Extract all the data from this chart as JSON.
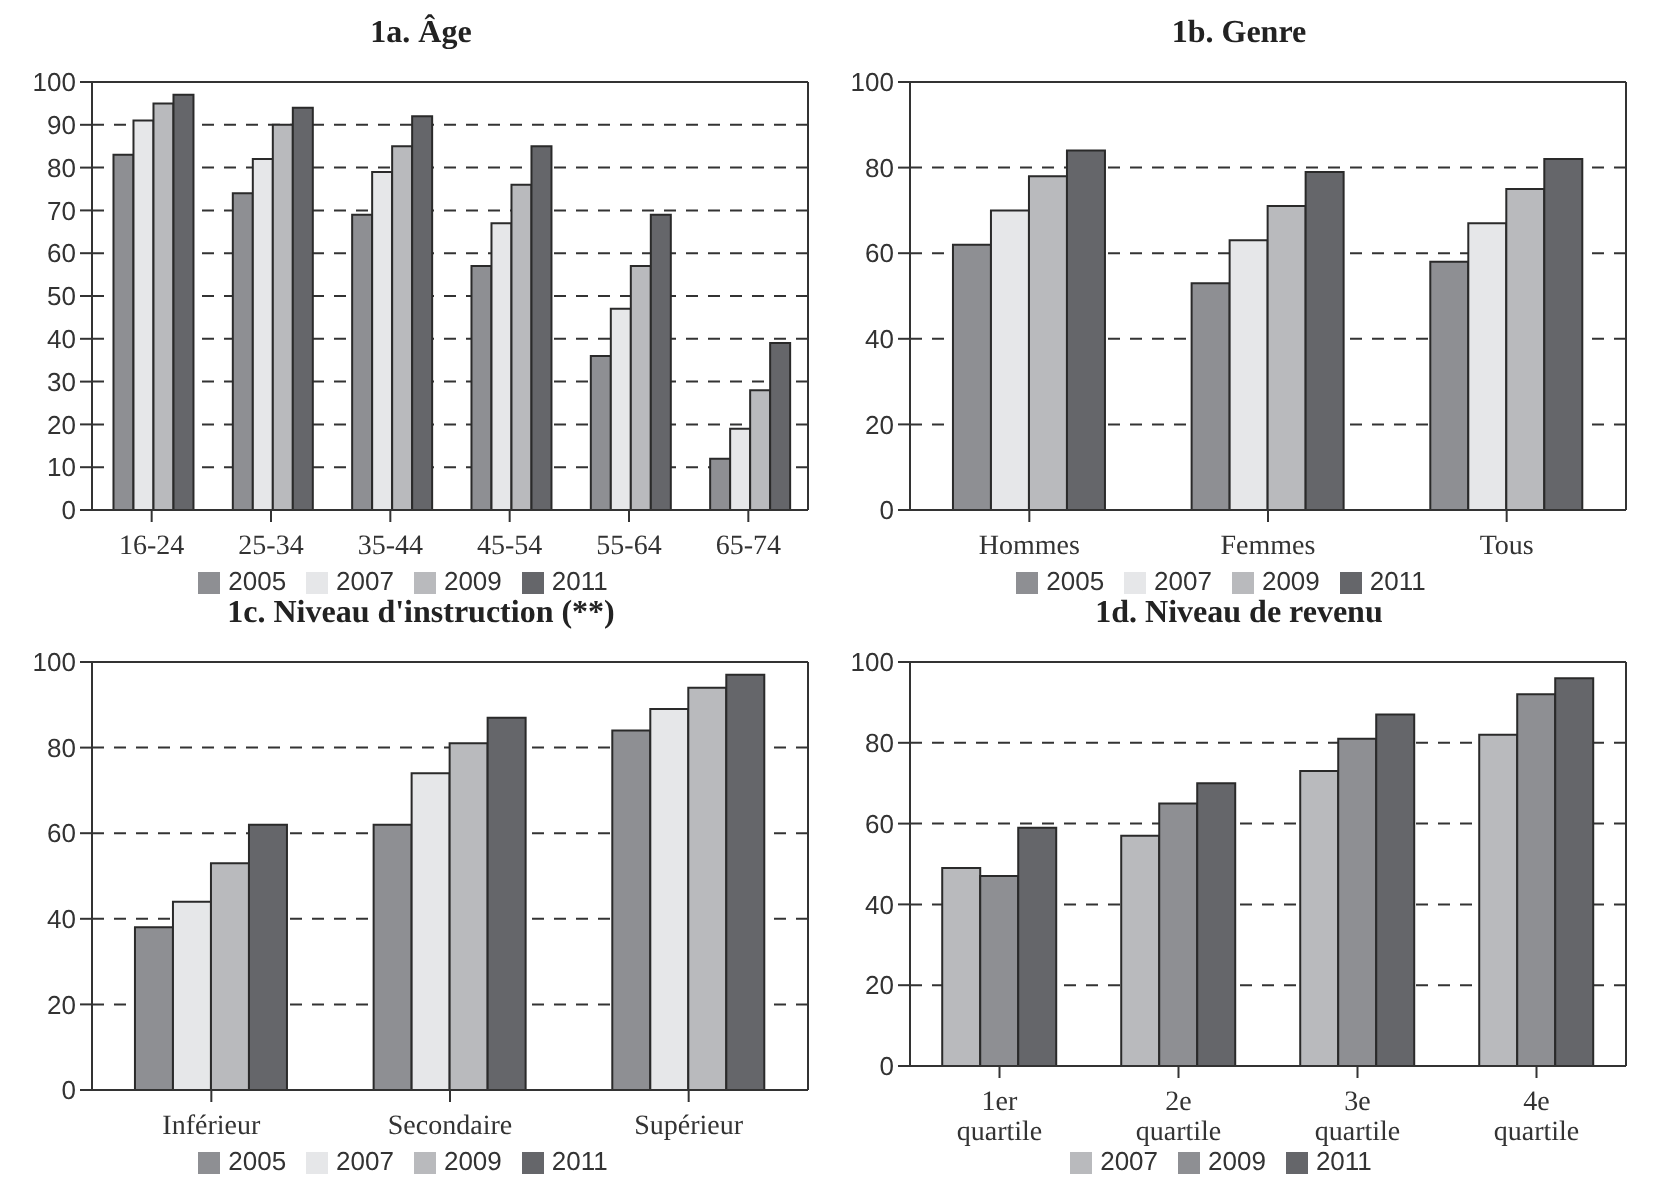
{
  "chart_data": [
    {
      "type": "bar",
      "title": "1a. Âge",
      "categories": [
        "16-24",
        "25-34",
        "35-44",
        "45-54",
        "55-64",
        "65-74"
      ],
      "series": [
        {
          "name": "2005",
          "color": "#8e8f93",
          "values": [
            83,
            74,
            69,
            57,
            36,
            12
          ]
        },
        {
          "name": "2007",
          "color": "#e6e7e9",
          "values": [
            91,
            82,
            79,
            67,
            47,
            19
          ]
        },
        {
          "name": "2009",
          "color": "#b9babd",
          "values": [
            95,
            90,
            85,
            76,
            57,
            28
          ]
        },
        {
          "name": "2011",
          "color": "#65666a",
          "values": [
            97,
            94,
            92,
            85,
            69,
            39
          ]
        }
      ],
      "ylim": [
        0,
        100
      ],
      "yticks": [
        0,
        10,
        20,
        30,
        40,
        50,
        60,
        70,
        80,
        90,
        100
      ],
      "grid": "y",
      "legend": "bottom"
    },
    {
      "type": "bar",
      "title": "1b. Genre",
      "categories": [
        "Hommes",
        "Femmes",
        "Tous"
      ],
      "series": [
        {
          "name": "2005",
          "color": "#8e8f93",
          "values": [
            62,
            53,
            58
          ]
        },
        {
          "name": "2007",
          "color": "#e6e7e9",
          "values": [
            70,
            63,
            67
          ]
        },
        {
          "name": "2009",
          "color": "#b9babd",
          "values": [
            78,
            71,
            75
          ]
        },
        {
          "name": "2011",
          "color": "#65666a",
          "values": [
            84,
            79,
            82
          ]
        }
      ],
      "ylim": [
        0,
        100
      ],
      "yticks": [
        0,
        20,
        40,
        60,
        80,
        100
      ],
      "grid": "y",
      "legend": "bottom"
    },
    {
      "type": "bar",
      "title": "1c. Niveau d'instruction (**)",
      "categories": [
        "Inférieur",
        "Secondaire",
        "Supérieur"
      ],
      "series": [
        {
          "name": "2005",
          "color": "#8e8f93",
          "values": [
            38,
            62,
            84
          ]
        },
        {
          "name": "2007",
          "color": "#e6e7e9",
          "values": [
            44,
            74,
            89
          ]
        },
        {
          "name": "2009",
          "color": "#b9babd",
          "values": [
            53,
            81,
            94
          ]
        },
        {
          "name": "2011",
          "color": "#65666a",
          "values": [
            62,
            87,
            97
          ]
        }
      ],
      "ylim": [
        0,
        100
      ],
      "yticks": [
        0,
        20,
        40,
        60,
        80,
        100
      ],
      "grid": "y",
      "legend": "bottom"
    },
    {
      "type": "bar",
      "title": "1d. Niveau de revenu",
      "categories": [
        "1er quartile",
        "2e quartile",
        "3e quartile",
        "4e quartile"
      ],
      "series": [
        {
          "name": "2007",
          "color": "#b9babd",
          "values": [
            49,
            57,
            73,
            82
          ]
        },
        {
          "name": "2009",
          "color": "#8e8f93",
          "values": [
            47,
            65,
            81,
            92
          ]
        },
        {
          "name": "2011",
          "color": "#65666a",
          "values": [
            59,
            70,
            87,
            96
          ]
        }
      ],
      "ylim": [
        0,
        100
      ],
      "yticks": [
        0,
        20,
        40,
        60,
        80,
        100
      ],
      "grid": "y",
      "legend": "bottom"
    }
  ]
}
